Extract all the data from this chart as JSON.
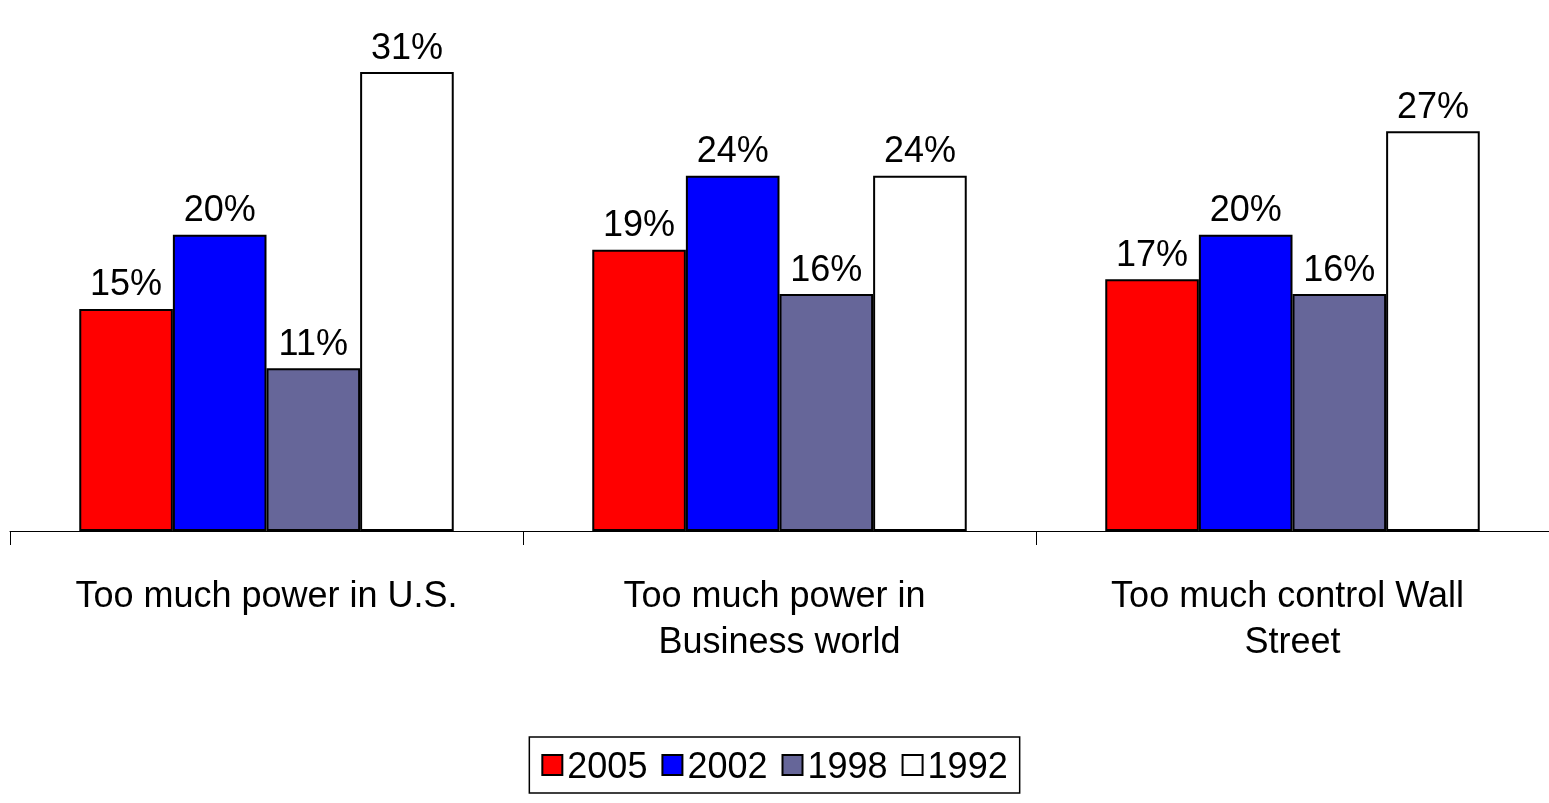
{
  "chart_data": {
    "type": "bar",
    "categories": [
      "Too much power in U.S.",
      "Too much power in Business world",
      "Too much control Wall Street"
    ],
    "series": [
      {
        "name": "2005",
        "color": "#ff0000",
        "values": [
          15,
          19,
          17
        ],
        "value_labels": [
          "15%",
          "19%",
          "17%"
        ]
      },
      {
        "name": "2002",
        "color": "#0000ff",
        "values": [
          20,
          24,
          20
        ],
        "value_labels": [
          "20%",
          "24%",
          "20%"
        ]
      },
      {
        "name": "1998",
        "color": "#666699",
        "values": [
          11,
          16,
          16
        ],
        "value_labels": [
          "11%",
          "16%",
          "16%"
        ]
      },
      {
        "name": "1992",
        "color": "#ffffff",
        "values": [
          31,
          24,
          27
        ],
        "value_labels": [
          "31%",
          "24%",
          "27%"
        ]
      }
    ],
    "grid": false,
    "legend": "bottom"
  }
}
